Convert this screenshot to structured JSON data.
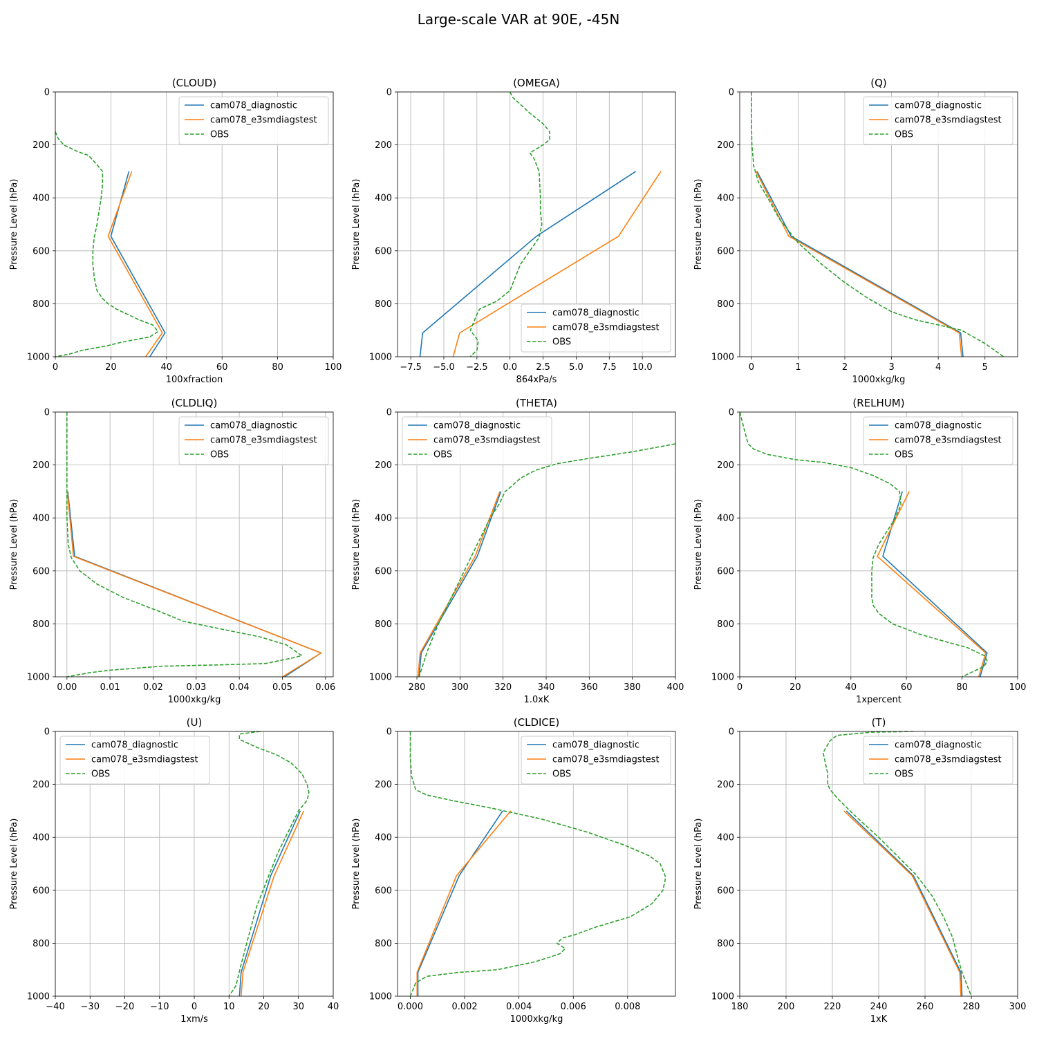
{
  "figure": {
    "title": "Large-scale VAR at 90E, -45N"
  },
  "styles": {
    "series_colors": [
      "#1f77b4",
      "#ff7f0e",
      "#2ca02c"
    ],
    "grid_color": "#b0b0b0"
  },
  "chart_data": [
    {
      "type": "line",
      "title": "(CLOUD)",
      "xlabel": "100xfraction",
      "ylabel": "Pressure Level (hPa)",
      "xlim": [
        0,
        100
      ],
      "ylim": [
        1000,
        0
      ],
      "xticks": [
        0,
        20,
        40,
        60,
        80,
        100
      ],
      "yticks": [
        0,
        200,
        400,
        600,
        800,
        1000
      ],
      "grid": true,
      "legend": "upper right",
      "series": [
        {
          "name": "cam078_diagnostic",
          "style": "solid",
          "x": [
            26.5,
            20,
            39.5,
            34
          ],
          "y": [
            300,
            545,
            910,
            1000
          ]
        },
        {
          "name": "cam078_e3smdiagstest",
          "style": "solid",
          "x": [
            27.5,
            19,
            38.5,
            32.5
          ],
          "y": [
            300,
            545,
            910,
            1000
          ]
        },
        {
          "name": "OBS",
          "style": "dashed",
          "x": [
            0,
            1,
            3,
            8,
            12,
            15,
            17,
            17,
            16.5,
            15,
            14,
            13.5,
            13.5,
            14,
            15,
            17,
            19,
            22,
            26,
            30,
            35,
            37,
            34,
            24,
            18,
            10,
            5,
            0
          ],
          "y": [
            150,
            175,
            200,
            225,
            240,
            275,
            300,
            350,
            400,
            500,
            550,
            600,
            650,
            700,
            750,
            780,
            800,
            820,
            840,
            860,
            880,
            905,
            925,
            945,
            960,
            975,
            990,
            1000
          ]
        }
      ]
    },
    {
      "type": "line",
      "title": "(OMEGA)",
      "xlabel": "864xPa/s",
      "ylabel": "Pressure Level (hPa)",
      "xlim": [
        -8.5,
        12.5
      ],
      "ylim": [
        1000,
        0
      ],
      "xticks": [
        -7.5,
        -5.0,
        -2.5,
        0.0,
        2.5,
        5.0,
        7.5,
        10.0
      ],
      "xticklabels": [
        "−7.5",
        "−5.0",
        "−2.5",
        "0.0",
        "2.5",
        "5.0",
        "7.5",
        "10.0"
      ],
      "yticks": [
        0,
        200,
        400,
        600,
        800,
        1000
      ],
      "grid": true,
      "legend": "lower right",
      "series": [
        {
          "name": "cam078_diagnostic",
          "style": "solid",
          "x": [
            9.5,
            2.0,
            -6.6,
            -6.8
          ],
          "y": [
            300,
            545,
            910,
            1000
          ]
        },
        {
          "name": "cam078_e3smdiagstest",
          "style": "solid",
          "x": [
            11.4,
            8.2,
            -3.8,
            -4.3
          ],
          "y": [
            300,
            545,
            910,
            1000
          ]
        },
        {
          "name": "OBS",
          "style": "dashed",
          "x": [
            0,
            0.2,
            1.5,
            2.5,
            3.0,
            3.0,
            2.5,
            1.5,
            1.8,
            2.2,
            2.3,
            2.3,
            2.4,
            2.2,
            1.5,
            0.8,
            0.0,
            -1.0,
            -2.3,
            -2.5,
            -3.0,
            -2.4,
            -2.5,
            -3.0
          ],
          "y": [
            0,
            20,
            80,
            120,
            150,
            180,
            200,
            230,
            250,
            300,
            400,
            450,
            500,
            550,
            600,
            650,
            750,
            790,
            820,
            840,
            900,
            940,
            975,
            1000
          ]
        }
      ]
    },
    {
      "type": "line",
      "title": "(Q)",
      "xlabel": "1000xkg/kg",
      "ylabel": "Pressure Level (hPa)",
      "xlim": [
        -0.25,
        5.7
      ],
      "ylim": [
        1000,
        0
      ],
      "xticks": [
        0,
        1,
        2,
        3,
        4,
        5
      ],
      "yticks": [
        0,
        200,
        400,
        600,
        800,
        1000
      ],
      "grid": true,
      "legend": "upper right",
      "series": [
        {
          "name": "cam078_diagnostic",
          "style": "solid",
          "x": [
            0.12,
            0.85,
            4.48,
            4.53
          ],
          "y": [
            300,
            545,
            910,
            1000
          ]
        },
        {
          "name": "cam078_e3smdiagstest",
          "style": "solid",
          "x": [
            0.1,
            0.8,
            4.45,
            4.5
          ],
          "y": [
            300,
            545,
            910,
            1000
          ]
        },
        {
          "name": "OBS",
          "style": "dashed",
          "x": [
            0,
            0,
            0.01,
            0.05,
            0.15,
            0.35,
            0.6,
            1.0,
            1.5,
            2.0,
            2.5,
            3.0,
            3.5,
            4.0,
            4.5,
            5.0,
            5.4
          ],
          "y": [
            0,
            100,
            200,
            280,
            340,
            400,
            480,
            570,
            650,
            720,
            780,
            830,
            860,
            880,
            900,
            950,
            1000
          ]
        }
      ]
    },
    {
      "type": "line",
      "title": "(CLDLIQ)",
      "xlabel": "1000xkg/kg",
      "ylabel": "Pressure Level (hPa)",
      "xlim": [
        -0.0027,
        0.0618
      ],
      "ylim": [
        1000,
        0
      ],
      "xticks": [
        0.0,
        0.01,
        0.02,
        0.03,
        0.04,
        0.05,
        0.06
      ],
      "xticklabels": [
        "0.00",
        "0.01",
        "0.02",
        "0.03",
        "0.04",
        "0.05",
        "0.06"
      ],
      "yticks": [
        0,
        200,
        400,
        600,
        800,
        1000
      ],
      "grid": true,
      "legend": "upper right",
      "series": [
        {
          "name": "cam078_diagnostic",
          "style": "solid",
          "x": [
            0.0002,
            0.0018,
            0.059,
            0.0505
          ],
          "y": [
            300,
            545,
            910,
            1000
          ]
        },
        {
          "name": "cam078_e3smdiagstest",
          "style": "solid",
          "x": [
            0.0001,
            0.0015,
            0.059,
            0.05
          ],
          "y": [
            300,
            545,
            910,
            1000
          ]
        },
        {
          "name": "OBS",
          "style": "dashed",
          "x": [
            0,
            0,
            0,
            0.0003,
            0.001,
            0.003,
            0.007,
            0.013,
            0.021,
            0.027,
            0.036,
            0.045,
            0.051,
            0.0545,
            0.052,
            0.046,
            0.035,
            0.022,
            0.01,
            0.005,
            0
          ],
          "y": [
            0,
            200,
            400,
            500,
            550,
            600,
            650,
            700,
            750,
            790,
            820,
            850,
            880,
            920,
            930,
            950,
            955,
            960,
            975,
            985,
            1000
          ]
        }
      ]
    },
    {
      "type": "line",
      "title": "(THETA)",
      "xlabel": "1.0xK",
      "ylabel": "Pressure Level (hPa)",
      "xlim": [
        271,
        400
      ],
      "ylim": [
        1000,
        0
      ],
      "xticks": [
        280,
        300,
        320,
        340,
        360,
        380,
        400
      ],
      "yticks": [
        0,
        200,
        400,
        600,
        800,
        1000
      ],
      "grid": true,
      "legend": "upper left",
      "series": [
        {
          "name": "cam078_diagnostic",
          "style": "solid",
          "x": [
            319,
            308,
            282,
            281
          ],
          "y": [
            300,
            545,
            910,
            1000
          ]
        },
        {
          "name": "cam078_e3smdiagstest",
          "style": "solid",
          "x": [
            318.5,
            307,
            281.5,
            280.5
          ],
          "y": [
            300,
            545,
            910,
            1000
          ]
        },
        {
          "name": "OBS",
          "style": "dashed",
          "x": [
            400,
            380,
            360,
            345,
            335,
            328,
            324,
            321,
            318,
            314,
            308,
            302,
            296,
            290,
            285,
            283,
            281
          ],
          "y": [
            120,
            150,
            175,
            195,
            220,
            250,
            280,
            300,
            350,
            400,
            500,
            600,
            700,
            800,
            900,
            950,
            1000
          ]
        }
      ]
    },
    {
      "type": "line",
      "title": "(RELHUM)",
      "xlabel": "1xpercent",
      "ylabel": "Pressure Level (hPa)",
      "xlim": [
        0,
        100
      ],
      "ylim": [
        1000,
        0
      ],
      "xticks": [
        0,
        20,
        40,
        60,
        80,
        100
      ],
      "yticks": [
        0,
        200,
        400,
        600,
        800,
        1000
      ],
      "grid": true,
      "legend": "upper right",
      "series": [
        {
          "name": "cam078_diagnostic",
          "style": "solid",
          "x": [
            58.5,
            51.5,
            89,
            86.5
          ],
          "y": [
            300,
            545,
            910,
            1000
          ]
        },
        {
          "name": "cam078_e3smdiagstest",
          "style": "solid",
          "x": [
            61,
            49.5,
            88.5,
            86
          ],
          "y": [
            300,
            545,
            910,
            1000
          ]
        },
        {
          "name": "OBS",
          "style": "dashed",
          "x": [
            0,
            1,
            2,
            3,
            5,
            10,
            20,
            30,
            40,
            48,
            54,
            57.5,
            58,
            56,
            53,
            50,
            48,
            47.5,
            47.5,
            48,
            50,
            55,
            65,
            75,
            82,
            88,
            89,
            88,
            80
          ],
          "y": [
            0,
            40,
            80,
            120,
            140,
            160,
            180,
            190,
            210,
            240,
            270,
            300,
            350,
            400,
            450,
            500,
            550,
            600,
            700,
            730,
            760,
            800,
            840,
            870,
            890,
            920,
            940,
            960,
            1000
          ]
        }
      ]
    },
    {
      "type": "line",
      "title": "(U)",
      "xlabel": "1xm/s",
      "ylabel": "Pressure Level (hPa)",
      "xlim": [
        -40,
        40
      ],
      "ylim": [
        1000,
        0
      ],
      "xticks": [
        -40,
        -30,
        -20,
        -10,
        0,
        10,
        20,
        30,
        40
      ],
      "xticklabels": [
        "−40",
        "−30",
        "−20",
        "−10",
        "0",
        "10",
        "20",
        "30",
        "40"
      ],
      "yticks": [
        0,
        200,
        400,
        600,
        800,
        1000
      ],
      "grid": true,
      "legend": "upper left",
      "series": [
        {
          "name": "cam078_diagnostic",
          "style": "solid",
          "x": [
            30.5,
            22,
            13.5,
            13
          ],
          "y": [
            300,
            545,
            910,
            1000
          ]
        },
        {
          "name": "cam078_e3smdiagstest",
          "style": "solid",
          "x": [
            31.5,
            23,
            14,
            13.5
          ],
          "y": [
            300,
            545,
            910,
            1000
          ]
        },
        {
          "name": "OBS",
          "style": "dashed",
          "x": [
            19,
            13,
            13,
            18,
            24,
            28,
            31,
            32.5,
            33,
            32.5,
            30,
            27,
            24,
            21,
            18,
            15.5,
            13.5,
            12,
            10
          ],
          "y": [
            0,
            10,
            30,
            60,
            90,
            120,
            160,
            200,
            230,
            260,
            300,
            380,
            460,
            560,
            660,
            780,
            880,
            960,
            1000
          ]
        }
      ]
    },
    {
      "type": "line",
      "title": "(CLDICE)",
      "xlabel": "1000xkg/kg",
      "ylabel": "Pressure Level (hPa)",
      "xlim": [
        -0.00047,
        0.00976
      ],
      "ylim": [
        1000,
        0
      ],
      "xticks": [
        0.0,
        0.002,
        0.004,
        0.006,
        0.008
      ],
      "xticklabels": [
        "0.000",
        "0.002",
        "0.004",
        "0.006",
        "0.008"
      ],
      "yticks": [
        0,
        200,
        400,
        600,
        800,
        1000
      ],
      "grid": true,
      "legend": "upper right",
      "series": [
        {
          "name": "cam078_diagnostic",
          "style": "solid",
          "x": [
            0.0034,
            0.0018,
            0.00028,
            0.00028
          ],
          "y": [
            300,
            545,
            910,
            1000
          ]
        },
        {
          "name": "cam078_e3smdiagstest",
          "style": "solid",
          "x": [
            0.0037,
            0.0017,
            0.00025,
            0.00025
          ],
          "y": [
            300,
            545,
            910,
            1000
          ]
        },
        {
          "name": "OBS",
          "style": "dashed",
          "x": [
            0,
            0,
            5e-05,
            0.0002,
            0.0006,
            0.0015,
            0.003,
            0.0048,
            0.0065,
            0.0079,
            0.0088,
            0.0092,
            0.0094,
            0.0093,
            0.0089,
            0.0081,
            0.0068,
            0.006,
            0.0056,
            0.0054,
            0.0057,
            0.0055,
            0.0046,
            0.0032,
            0.0018,
            0.0006,
            0.0002,
            0
          ],
          "y": [
            0,
            100,
            170,
            220,
            240,
            260,
            290,
            330,
            380,
            430,
            470,
            500,
            550,
            600,
            650,
            700,
            740,
            770,
            780,
            800,
            820,
            840,
            870,
            900,
            910,
            925,
            950,
            1000
          ]
        }
      ]
    },
    {
      "type": "line",
      "title": "(T)",
      "xlabel": "1xK",
      "ylabel": "Pressure Level (hPa)",
      "xlim": [
        180,
        300
      ],
      "ylim": [
        1000,
        0
      ],
      "xticks": [
        180,
        200,
        220,
        240,
        260,
        280,
        300
      ],
      "yticks": [
        0,
        200,
        400,
        600,
        800,
        1000
      ],
      "grid": true,
      "legend": "upper right",
      "series": [
        {
          "name": "cam078_diagnostic",
          "style": "solid",
          "x": [
            226,
            255,
            275.5,
            276
          ],
          "y": [
            300,
            545,
            910,
            1000
          ]
        },
        {
          "name": "cam078_e3smdiagstest",
          "style": "solid",
          "x": [
            225,
            254.5,
            275,
            275.5
          ],
          "y": [
            300,
            545,
            910,
            1000
          ]
        },
        {
          "name": "OBS",
          "style": "dashed",
          "x": [
            255,
            237,
            222,
            219,
            216,
            217,
            218,
            218,
            219,
            223,
            230,
            240,
            248,
            256,
            263,
            268,
            272,
            274,
            276,
            280
          ],
          "y": [
            0,
            3,
            15,
            35,
            80,
            120,
            160,
            200,
            220,
            260,
            320,
            400,
            470,
            540,
            620,
            700,
            780,
            850,
            910,
            1000
          ]
        }
      ]
    }
  ]
}
